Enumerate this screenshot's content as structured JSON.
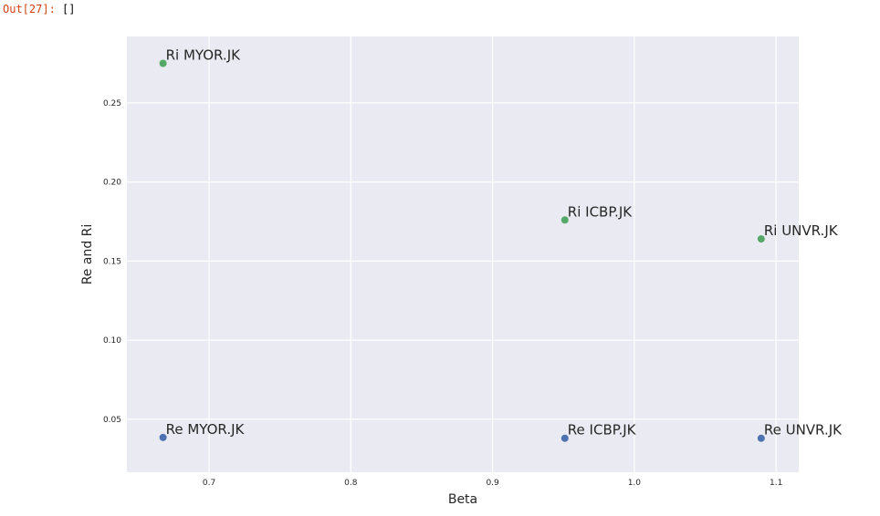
{
  "output_cell": {
    "prompt": "Out[27]:",
    "value": "[]"
  },
  "colors": {
    "plot_background": "#eaeaf2",
    "grid": "#ffffff",
    "tick_text": "#262626",
    "series_re": "#4c72b0",
    "series_ri": "#55a868",
    "prompt": "#d84315"
  },
  "chart_data": {
    "type": "scatter",
    "title": "",
    "xlabel": "Beta",
    "ylabel": "Re and Ri",
    "xlim": [
      0.642,
      1.116
    ],
    "ylim": [
      0.0165,
      0.292
    ],
    "grid": true,
    "xticks": [
      0.7,
      0.8,
      0.9,
      1.0,
      1.1
    ],
    "xtick_labels": [
      "0.7",
      "0.8",
      "0.9",
      "1.0",
      "1.1"
    ],
    "yticks": [
      0.05,
      0.1,
      0.15,
      0.2,
      0.25
    ],
    "ytick_labels": [
      "0.05",
      "0.10",
      "0.15",
      "0.20",
      "0.25"
    ],
    "series": [
      {
        "color": "#4c72b0",
        "points": [
          {
            "x": 0.6675,
            "y": 0.0385,
            "label": "Re MYOR.JK"
          },
          {
            "x": 0.951,
            "y": 0.038,
            "label": "Re ICBP.JK"
          },
          {
            "x": 1.0895,
            "y": 0.038,
            "label": "Re UNVR.JK"
          }
        ]
      },
      {
        "color": "#55a868",
        "points": [
          {
            "x": 0.6675,
            "y": 0.275,
            "label": "Ri MYOR.JK"
          },
          {
            "x": 0.951,
            "y": 0.176,
            "label": "Ri ICBP.JK"
          },
          {
            "x": 1.0895,
            "y": 0.164,
            "label": "Ri UNVR.JK"
          }
        ]
      }
    ]
  }
}
